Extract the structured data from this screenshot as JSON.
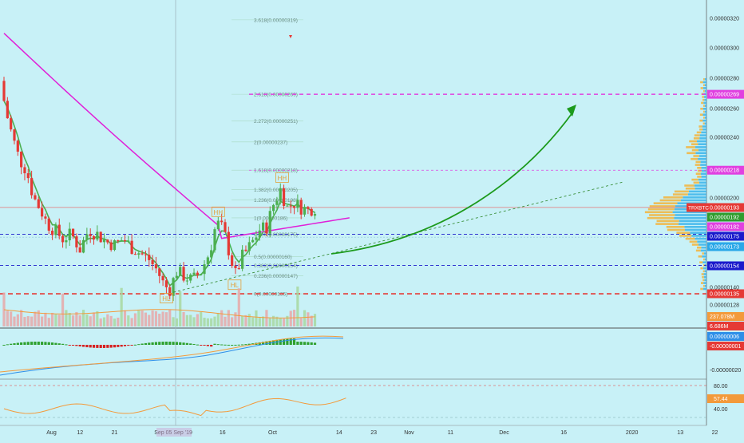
{
  "chart_data": {
    "type": "candlestick",
    "symbol": "TRXBTC",
    "x_ticks": [
      {
        "label": "Aug",
        "t": 55
      },
      {
        "label": "12",
        "t": 88
      },
      {
        "label": "21",
        "t": 128
      },
      {
        "label": "Sep 05 Sep '19",
        "t": 196
      },
      {
        "label": "16",
        "t": 253
      },
      {
        "label": "Oct",
        "t": 311
      },
      {
        "label": "14",
        "t": 388
      },
      {
        "label": "23",
        "t": 428
      },
      {
        "label": "Nov",
        "t": 469
      },
      {
        "label": "11",
        "t": 517
      },
      {
        "label": "Dec",
        "t": 579
      },
      {
        "label": "16",
        "t": 648
      },
      {
        "label": "2020",
        "t": 727
      },
      {
        "label": "13",
        "t": 783
      },
      {
        "label": "22",
        "t": 823
      }
    ],
    "price_axis": {
      "ylim": [
        1.2e-06,
        3.3e-06
      ],
      "ticks": [
        "0.00000320",
        "0.00000300",
        "0.00000280",
        "0.00000260",
        "0.00000240",
        "0.00000200",
        "0.00000140",
        "0.00000128"
      ]
    },
    "price_badges": [
      {
        "value": "0.00000269",
        "color": "#e040e0"
      },
      {
        "value": "0.00000218",
        "color": "#e040e0"
      },
      {
        "value": "0.00000193",
        "color": "#e53935"
      },
      {
        "value": "0.00000192",
        "color": "#2e9d2e"
      },
      {
        "value": "0.00000182",
        "color": "#e040e0"
      },
      {
        "value": "0.00000175",
        "color": "#1a1acc"
      },
      {
        "value": "0.00000173",
        "color": "#2aa8e8"
      },
      {
        "value": "0.00000154",
        "color": "#1a1acc"
      },
      {
        "value": "0.00000135",
        "color": "#e53935"
      }
    ],
    "fib_levels": [
      {
        "label": "3.618(0.00000319)",
        "y": 3.19e-06
      },
      {
        "label": "2.618(0.00000269)",
        "y": 2.69e-06
      },
      {
        "label": "2.272(0.00000251)",
        "y": 2.51e-06
      },
      {
        "label": "2(0.00000237)",
        "y": 2.37e-06
      },
      {
        "label": "1.618(0.00000218)",
        "y": 2.18e-06
      },
      {
        "label": "1.382(0.00000205)",
        "y": 2.05e-06
      },
      {
        "label": "1.236(0.00000198)",
        "y": 1.98e-06
      },
      {
        "label": "1(0.00000186)",
        "y": 1.86e-06
      },
      {
        "label": "0.786(0.00000175)",
        "y": 1.75e-06
      },
      {
        "label": "0.5(0.00000160)",
        "y": 1.6e-06
      },
      {
        "label": "0.382(0.00000154)",
        "y": 1.54e-06
      },
      {
        "label": "0.236(0.00000147)",
        "y": 1.47e-06
      },
      {
        "label": "0(0.00000135)",
        "y": 1.35e-06
      }
    ],
    "pattern_labels": [
      {
        "text": "HL",
        "t": 188,
        "y": 1.31e-06
      },
      {
        "text": "HH",
        "t": 248,
        "y": 1.89e-06
      },
      {
        "text": "HL",
        "t": 267,
        "y": 1.4e-06
      },
      {
        "text": "HH",
        "t": 322,
        "y": 2.12e-06
      }
    ],
    "volume_badges": [
      "237.078M",
      "6.686M"
    ],
    "macd": {
      "badges": [
        "0.00000006",
        "-0.00000001"
      ],
      "axis_label": "-0.00000020"
    },
    "rsi": {
      "ticks": [
        "80.00",
        "40.00"
      ],
      "badge": "57.44"
    }
  }
}
